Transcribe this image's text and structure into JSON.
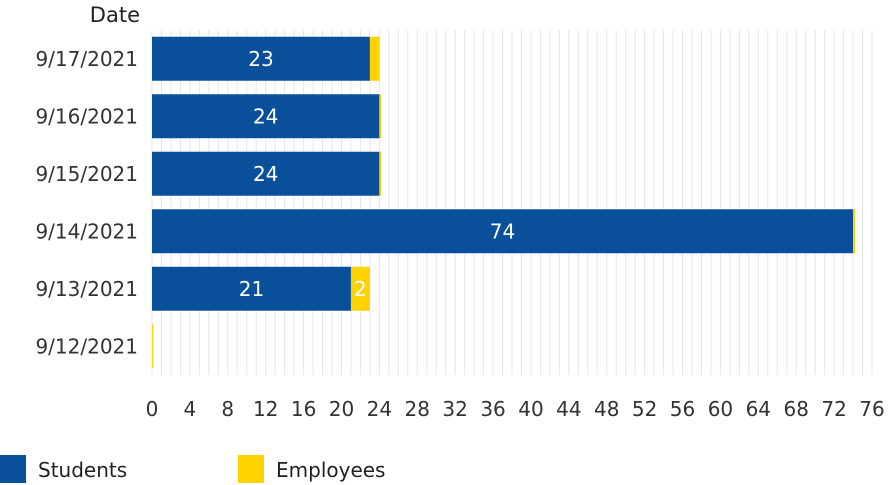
{
  "chart_data": {
    "type": "bar",
    "orientation": "horizontal",
    "stacked": true,
    "ylabel": "Date",
    "categories": [
      "9/17/2021",
      "9/16/2021",
      "9/15/2021",
      "9/14/2021",
      "9/13/2021",
      "9/12/2021"
    ],
    "series": [
      {
        "name": "Students",
        "color": "#0a4f9a",
        "values": [
          23,
          24,
          24,
          74,
          21,
          0
        ]
      },
      {
        "name": "Employees",
        "color": "#ffd200",
        "values": [
          1,
          0.2,
          0.2,
          0.2,
          2,
          0.1
        ]
      }
    ],
    "data_labels": [
      [
        "23",
        "24",
        "24",
        "74",
        "21",
        ""
      ],
      [
        "",
        "",
        "",
        "",
        "2",
        ""
      ]
    ],
    "xlim": [
      0,
      76
    ],
    "xticks": [
      0,
      4,
      8,
      12,
      16,
      20,
      24,
      28,
      32,
      36,
      40,
      44,
      48,
      52,
      56,
      60,
      64,
      68,
      72,
      76
    ],
    "grid": "vertical",
    "legend_position": "bottom-left"
  }
}
